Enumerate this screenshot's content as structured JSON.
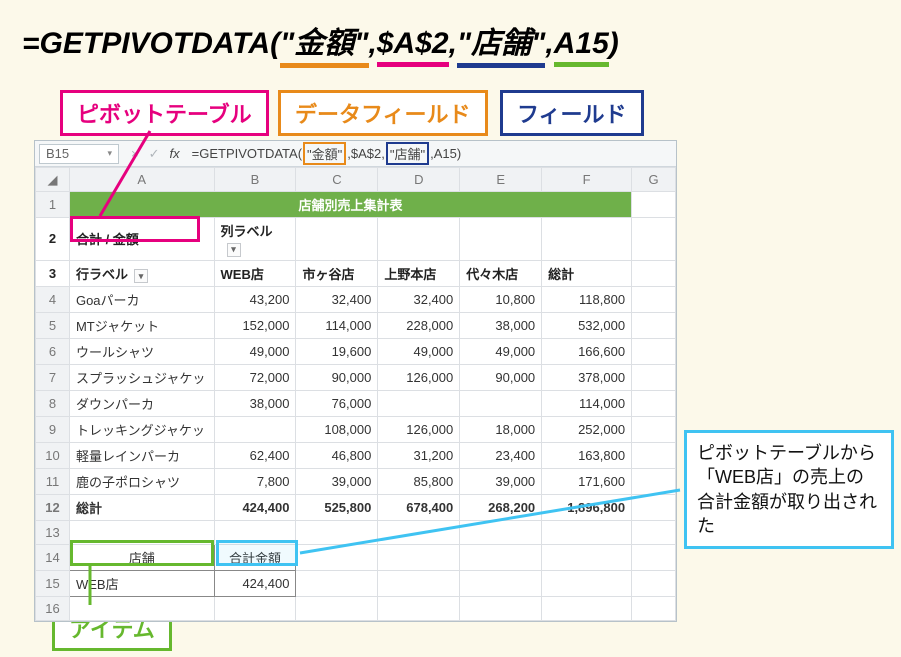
{
  "background_color": "#fcf9ea",
  "colors": {
    "orange": "#e88a1a",
    "magenta": "#e6007e",
    "blue": "#1f3b8f",
    "green": "#66b82e",
    "cyan": "#3fc3f2",
    "pivot_header_bg": "#6fb04a"
  },
  "top_formula": {
    "prefix": "=GETPIVOTDATA(",
    "arg1": "\"金額\"",
    "arg2": "$A$2",
    "arg3": "\"店舗\"",
    "arg4": "A15",
    "suffix": ")"
  },
  "legends": {
    "pivot_table": "ピボットテーブル",
    "data_field": "データフィールド",
    "field": "フィールド",
    "item": "アイテム"
  },
  "excel": {
    "name_box": "B15",
    "formula_bar": {
      "prefix": "=GETPIVOTDATA(",
      "arg1": "\"金額\"",
      "sep1": ",$A$2,",
      "arg3": "\"店舗\"",
      "sep2": ",A15)",
      "full_fallback": "=GETPIVOTDATA(\"金額\",$A$2,\"店舗\",A15)"
    },
    "columns": [
      "A",
      "B",
      "C",
      "D",
      "E",
      "F",
      "G"
    ],
    "pivot_title": "店舗別売上集計表",
    "row2": {
      "a": "合計 / 金額",
      "b": "列ラベル"
    },
    "row3": {
      "a": "行ラベル",
      "c1": "WEB店",
      "c2": "市ヶ谷店",
      "c3": "上野本店",
      "c4": "代々木店",
      "c5": "総計"
    },
    "data_rows": [
      {
        "label": "Goaパーカ",
        "v": [
          "43,200",
          "32,400",
          "32,400",
          "10,800",
          "118,800"
        ]
      },
      {
        "label": "MTジャケット",
        "v": [
          "152,000",
          "114,000",
          "228,000",
          "38,000",
          "532,000"
        ]
      },
      {
        "label": "ウールシャツ",
        "v": [
          "49,000",
          "19,600",
          "49,000",
          "49,000",
          "166,600"
        ]
      },
      {
        "label": "スプラッシュジャケッ",
        "v": [
          "72,000",
          "90,000",
          "126,000",
          "90,000",
          "378,000"
        ]
      },
      {
        "label": "ダウンパーカ",
        "v": [
          "38,000",
          "76,000",
          "",
          "",
          "114,000"
        ]
      },
      {
        "label": "トレッキングジャケッ",
        "v": [
          "",
          "108,000",
          "126,000",
          "18,000",
          "252,000"
        ]
      },
      {
        "label": "軽量レインパーカ",
        "v": [
          "62,400",
          "46,800",
          "31,200",
          "23,400",
          "163,800"
        ]
      },
      {
        "label": "鹿の子ポロシャツ",
        "v": [
          "7,800",
          "39,000",
          "85,800",
          "39,000",
          "171,600"
        ]
      }
    ],
    "total_row": {
      "label": "総計",
      "v": [
        "424,400",
        "525,800",
        "678,400",
        "268,200",
        "1,896,800"
      ]
    },
    "row14": {
      "a": "店舗",
      "b": "合計金額"
    },
    "row15": {
      "a": "WEB店",
      "b": "424,400"
    }
  },
  "side_note": "ピボットテーブルから「WEB店」の売上の合計金額が取り出された"
}
